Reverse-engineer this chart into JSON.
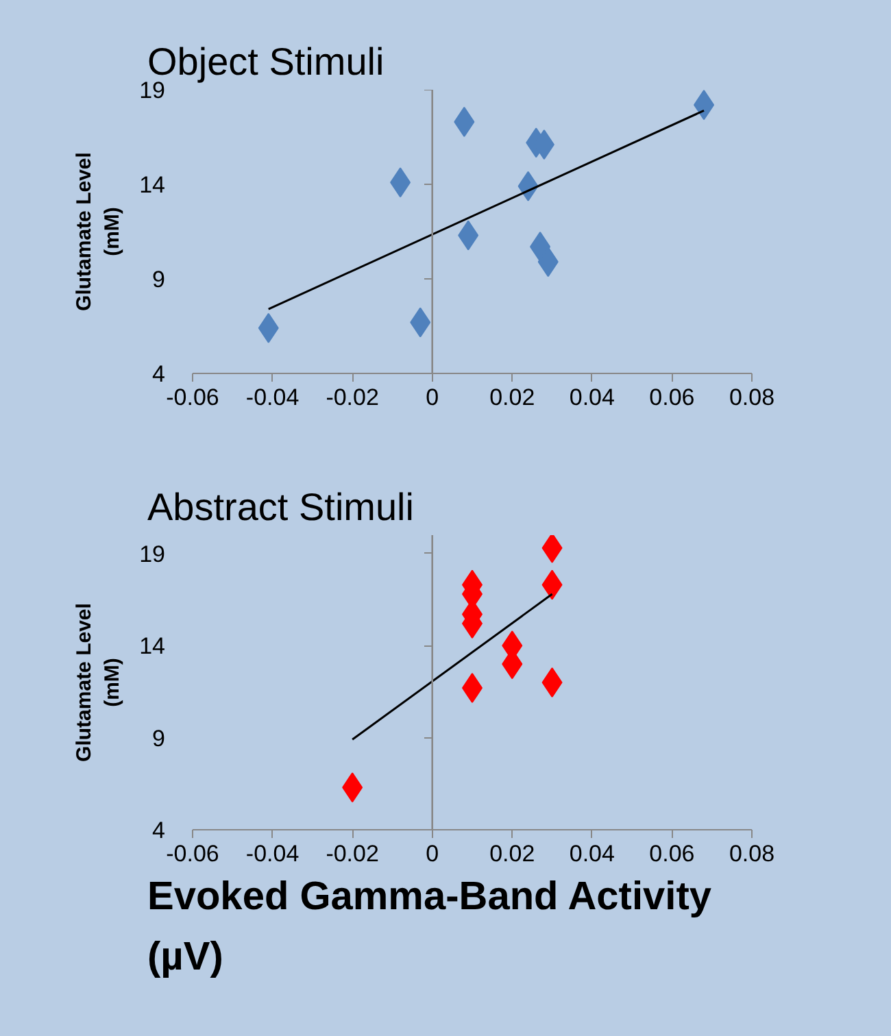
{
  "chart_data": [
    {
      "type": "scatter",
      "title": "Object Stimuli",
      "ylabel": "Glutamate Level (mM)",
      "grid": false,
      "ref_lines": [
        {
          "axis": "x",
          "value": 0,
          "color": "#888888"
        }
      ],
      "xlim": [
        -0.06,
        0.08
      ],
      "xticks": [
        -0.06,
        -0.04,
        -0.02,
        0,
        0.02,
        0.04,
        0.06,
        0.08
      ],
      "ylim": [
        4,
        19
      ],
      "yticks": [
        4,
        9,
        14,
        19
      ],
      "series": [
        {
          "type": "scatter",
          "marker": "diamond",
          "color": "#4f81bd",
          "x": [
            -0.041,
            -0.003,
            -0.008,
            0.008,
            0.009,
            0.024,
            0.026,
            0.028,
            0.027,
            0.029,
            0.068
          ],
          "values": [
            6.4,
            6.7,
            14.1,
            17.3,
            11.3,
            13.9,
            16.2,
            16.1,
            10.7,
            9.9,
            18.2
          ]
        },
        {
          "type": "line",
          "marker": "none",
          "color": "#000000",
          "x": [
            -0.041,
            0.068
          ],
          "values": [
            7.4,
            17.9
          ]
        }
      ]
    },
    {
      "type": "scatter",
      "title": "Abstract Stimuli",
      "ylabel": "Glutamate Level (mM)",
      "xlabel": "Evoked Gamma-Band Activity (µV)",
      "grid": false,
      "ref_lines": [
        {
          "axis": "x",
          "value": 0,
          "color": "#888888"
        }
      ],
      "xlim": [
        -0.06,
        0.08
      ],
      "xticks": [
        -0.06,
        -0.04,
        -0.02,
        0,
        0.02,
        0.04,
        0.06,
        0.08
      ],
      "ylim": [
        4,
        20
      ],
      "yticks": [
        4,
        9,
        14,
        19
      ],
      "series": [
        {
          "type": "scatter",
          "marker": "diamond",
          "color": "#ff0000",
          "x": [
            -0.02,
            0.01,
            0.01,
            0.01,
            0.01,
            0.01,
            0.02,
            0.02,
            0.03,
            0.03,
            0.03
          ],
          "values": [
            6.3,
            17.3,
            16.8,
            15.7,
            15.2,
            11.7,
            14.0,
            13.0,
            19.3,
            17.3,
            12.0
          ]
        },
        {
          "type": "line",
          "marker": "none",
          "color": "#000000",
          "x": [
            -0.02,
            0.03
          ],
          "values": [
            8.9,
            16.8
          ]
        }
      ]
    }
  ]
}
